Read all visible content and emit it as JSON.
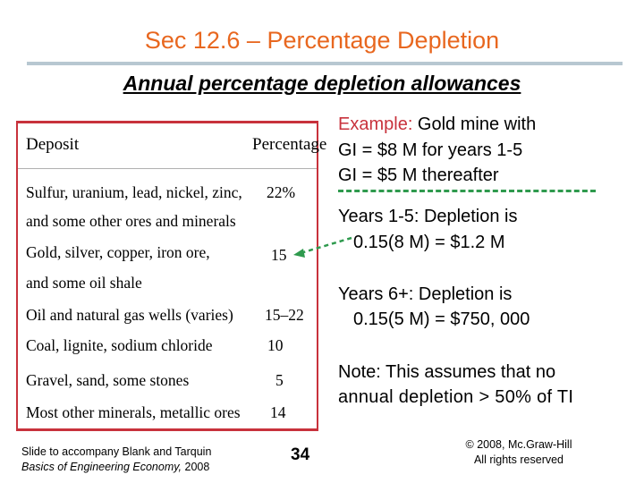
{
  "slide": {
    "title": "Sec 12.6 – Percentage Depletion",
    "subtitle": "Annual percentage depletion allowances"
  },
  "table": {
    "headers": {
      "deposit": "Deposit",
      "percentage": "Percentage"
    },
    "rows": [
      {
        "deposit_l1": "Sulfur, uranium, lead, nickel, zinc,",
        "deposit_l2": "and some other ores and minerals",
        "percentage": "22%"
      },
      {
        "deposit_l1": "Gold, silver, copper, iron ore,",
        "deposit_l2": "and some oil shale",
        "percentage": "15"
      },
      {
        "deposit_l1": "Oil and natural gas wells (varies)",
        "percentage": "15–22"
      },
      {
        "deposit_l1": "Coal, lignite, sodium chloride",
        "percentage": "10"
      },
      {
        "deposit_l1": "Gravel, sand, some stones",
        "percentage": "5"
      },
      {
        "deposit_l1": "Most other minerals, metallic ores",
        "percentage": "14"
      }
    ]
  },
  "example": {
    "label": "Example:",
    "line1_rest": " Gold mine with",
    "line2": "GI = $8 M for years 1-5",
    "line3": "GI = $5 M thereafter"
  },
  "calc1": {
    "line1": "Years 1-5: Depletion is",
    "line2": "0.15(8 M) = $1.2 M"
  },
  "calc2": {
    "line1": "Years 6+: Depletion is",
    "line2": "0.15(5 M) = $750, 000"
  },
  "note": {
    "line1": "Note: This assumes that no",
    "line2": "annual depletion > 50% of TI"
  },
  "footer": {
    "left_l1": "Slide to accompany Blank and Tarquin",
    "left_l2_title": "Basics of Engineering Economy,",
    "left_l2_year": " 2008",
    "page_number": "34",
    "right_l1": "© 2008, Mc.Graw-Hill",
    "right_l2": "All rights reserved"
  },
  "colors": {
    "title": "#e8671f",
    "accent": "#c8323c",
    "arrow": "#2f9a4e",
    "rule": "#b7c7d1"
  }
}
